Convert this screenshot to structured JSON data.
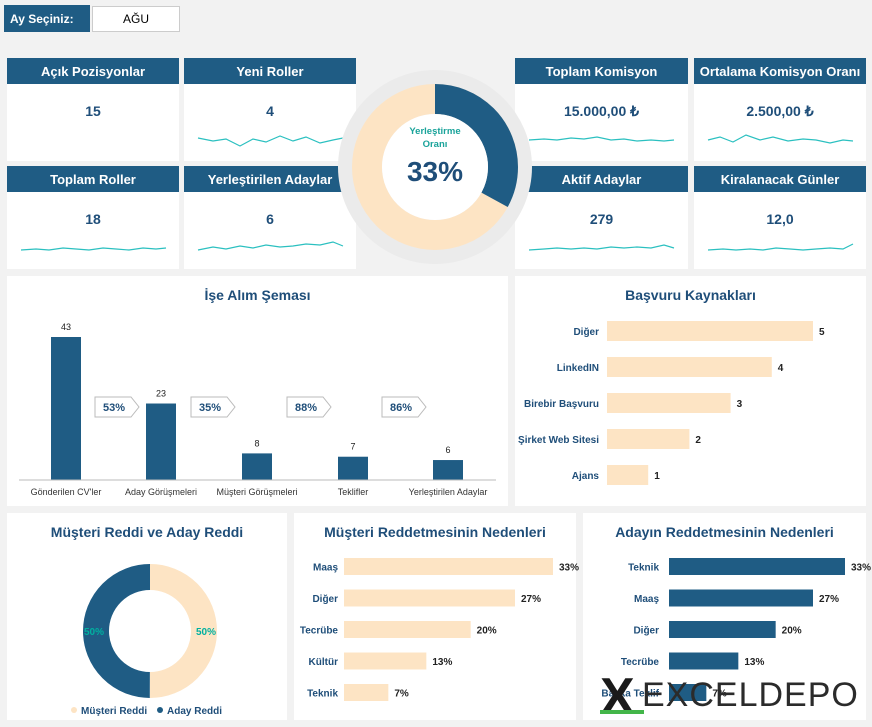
{
  "selector": {
    "label": "Ay Seçiniz:",
    "value": "AĞU"
  },
  "kpis": [
    {
      "title": "Açık Pozisyonlar",
      "value": "15"
    },
    {
      "title": "Yeni Roller",
      "value": "4"
    },
    {
      "title": "Toplam Komisyon",
      "value": "15.000,00 ₺"
    },
    {
      "title": "Ortalama Komisyon Oranı",
      "value": "2.500,00 ₺"
    },
    {
      "title": "Toplam Roller",
      "value": "18"
    },
    {
      "title": "Yerleştirilen Adaylar",
      "value": "6"
    },
    {
      "title": "Aktif Adaylar",
      "value": "279"
    },
    {
      "title": "Kiralanacak Günler",
      "value": "12,0"
    }
  ],
  "placement": {
    "label_line1": "Yerleştirme",
    "label_line2": "Oranı",
    "value_text": "33%",
    "fraction": 0.33
  },
  "colors": {
    "navy": "#1f5c84",
    "peach": "#fde4c4",
    "teal": "#00b0a0",
    "header": "#1f5c84"
  },
  "chart_data": [
    {
      "type": "bar",
      "title": "İşe Alım Şeması",
      "categories": [
        "Gönderilen CV'ler",
        "Aday Görüşmeleri",
        "Müşteri Görüşmeleri",
        "Teklifler",
        "Yerleştirilen Adaylar"
      ],
      "values": [
        43,
        23,
        8,
        7,
        6
      ],
      "conversions": [
        "53%",
        "35%",
        "88%",
        "86%"
      ]
    },
    {
      "type": "bar",
      "orientation": "horizontal",
      "title": "Başvuru Kaynakları",
      "categories": [
        "Diğer",
        "LinkedIN",
        "Birebir Başvuru",
        "Şirket Web Sitesi",
        "Ajans"
      ],
      "values": [
        5,
        4,
        3,
        2,
        1
      ],
      "value_labels": [
        "5",
        "4",
        "3",
        "2",
        "1"
      ]
    },
    {
      "type": "pie",
      "title": "Müşteri Reddi ve Aday Reddi",
      "categories": [
        "Müşteri Reddi",
        "Aday Reddi"
      ],
      "values": [
        50,
        50
      ],
      "value_labels": [
        "50%",
        "50%"
      ]
    },
    {
      "type": "bar",
      "orientation": "horizontal",
      "title": "Müşteri Reddetmesinin Nedenleri",
      "categories": [
        "Maaş",
        "Diğer",
        "Tecrübe",
        "Kültür",
        "Teknik"
      ],
      "values": [
        33,
        27,
        20,
        13,
        7
      ],
      "value_labels": [
        "33%",
        "27%",
        "20%",
        "13%",
        "7%"
      ]
    },
    {
      "type": "bar",
      "orientation": "horizontal",
      "title": "Adayın Reddetmesinin Nedenleri",
      "categories": [
        "Teknik",
        "Maaş",
        "Diğer",
        "Tecrübe",
        "Başka Teklif"
      ],
      "values": [
        33,
        27,
        20,
        13,
        7
      ],
      "value_labels": [
        "33%",
        "27%",
        "20%",
        "13%",
        "7%"
      ]
    }
  ],
  "watermark": {
    "text": "EXCELDEPO",
    "prefix": "X"
  }
}
